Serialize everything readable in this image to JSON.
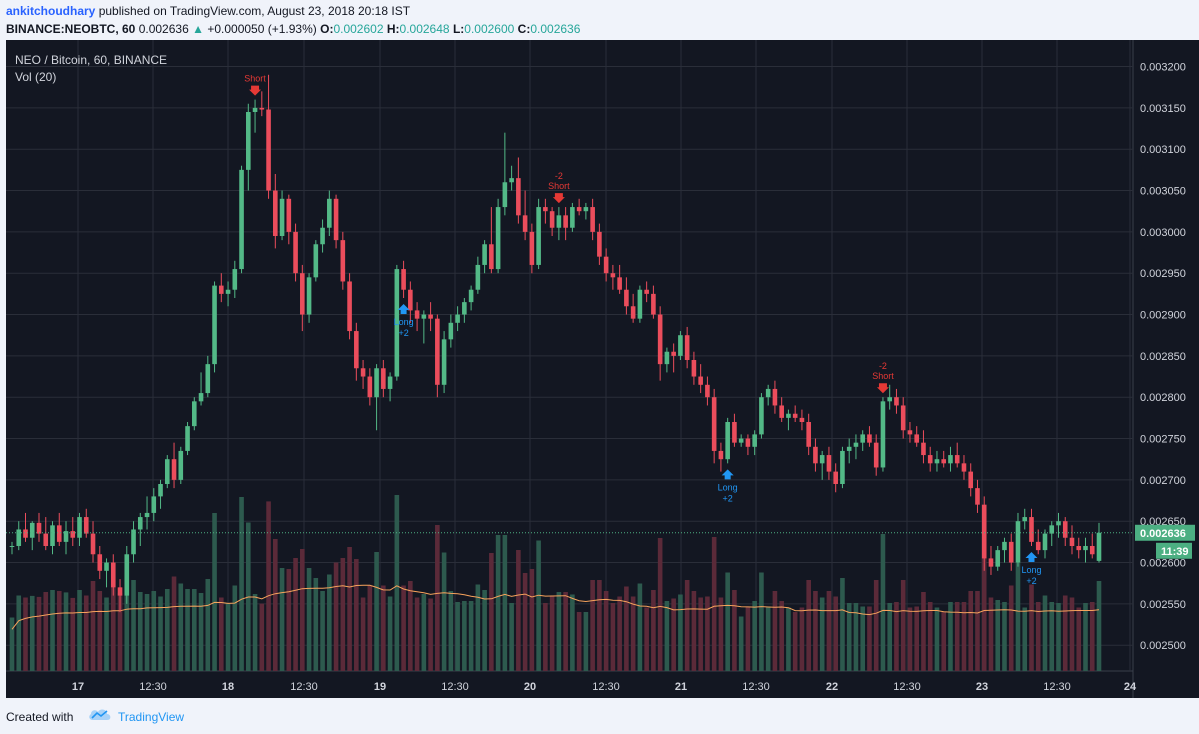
{
  "header": {
    "author": "ankitchoudhary",
    "published_text": "published on TradingView.com, August 23, 2018 20:18 IST",
    "symbol": "BINANCE:NEOBTC, 60",
    "last": "0.002636",
    "change": "+0.000050 (+1.93%)",
    "o_label": "O:",
    "o_value": "0.002602",
    "h_label": "H:",
    "h_value": "0.002648",
    "l_label": "L:",
    "l_value": "0.002600",
    "c_label": "C:",
    "c_value": "0.002636"
  },
  "chart_legend": {
    "series_title": "NEO / Bitcoin, 60, BINANCE",
    "volume_label": "Vol (20)"
  },
  "price_axis": {
    "ticks": [
      "0.003200",
      "0.003150",
      "0.003100",
      "0.003050",
      "0.003000",
      "0.002950",
      "0.002900",
      "0.002850",
      "0.002800",
      "0.002750",
      "0.002700",
      "0.002650",
      "0.002600",
      "0.002550",
      "0.002500"
    ],
    "current_price_label": "0.002636",
    "countdown_label": "11:39"
  },
  "time_axis": {
    "ticks": [
      "17",
      "12:30",
      "18",
      "12:30",
      "19",
      "12:30",
      "20",
      "12:30",
      "21",
      "12:30",
      "22",
      "12:30",
      "23",
      "12:30",
      "24"
    ]
  },
  "footer": {
    "created_with": "Created with",
    "brand": "TradingView"
  },
  "colors": {
    "background": "#131722",
    "up": "#53b987",
    "down": "#eb4d5c",
    "up_volume": "#2d5a4e",
    "down_volume": "#5b2a39",
    "ma_line": "#f7a35c",
    "grid": "#2a2e39",
    "signal_long": "#2196f3",
    "signal_short": "#e53935",
    "price_label": "#4caf82"
  },
  "chart_data": {
    "type": "candlestick",
    "symbol": "NEO / Bitcoin",
    "interval": "60",
    "exchange": "BINANCE",
    "ylim": [
      0.00247,
      0.00322
    ],
    "grid": true,
    "series": [
      {
        "name": "Vol (20)",
        "kind": "volume_with_ma",
        "ma_period": 20
      }
    ],
    "candles": [
      [
        0.00262,
        0.002625,
        0.00261,
        0.00262
      ],
      [
        0.00262,
        0.00265,
        0.002615,
        0.00264
      ],
      [
        0.00264,
        0.00266,
        0.002625,
        0.00263
      ],
      [
        0.00263,
        0.00265,
        0.002615,
        0.002648
      ],
      [
        0.002648,
        0.00266,
        0.002625,
        0.002635
      ],
      [
        0.002635,
        0.002655,
        0.002615,
        0.00262
      ],
      [
        0.00262,
        0.00265,
        0.00261,
        0.002645
      ],
      [
        0.002645,
        0.00266,
        0.00262,
        0.002625
      ],
      [
        0.002625,
        0.00265,
        0.00261,
        0.002638
      ],
      [
        0.002638,
        0.002655,
        0.00262,
        0.00263
      ],
      [
        0.00263,
        0.00266,
        0.00262,
        0.002655
      ],
      [
        0.002655,
        0.002665,
        0.00263,
        0.002635
      ],
      [
        0.002635,
        0.00265,
        0.0026,
        0.00261
      ],
      [
        0.00261,
        0.00262,
        0.00258,
        0.00259
      ],
      [
        0.00259,
        0.002605,
        0.00257,
        0.0026
      ],
      [
        0.0026,
        0.00261,
        0.00256,
        0.00257
      ],
      [
        0.00257,
        0.00258,
        0.00254,
        0.00256
      ],
      [
        0.00256,
        0.00262,
        0.00255,
        0.00261
      ],
      [
        0.00261,
        0.00265,
        0.0026,
        0.00264
      ],
      [
        0.00264,
        0.00266,
        0.00262,
        0.002655
      ],
      [
        0.002655,
        0.00268,
        0.00264,
        0.00266
      ],
      [
        0.00266,
        0.00269,
        0.00265,
        0.00268
      ],
      [
        0.00268,
        0.0027,
        0.002665,
        0.002695
      ],
      [
        0.002695,
        0.00273,
        0.00269,
        0.002725
      ],
      [
        0.002725,
        0.002745,
        0.00269,
        0.0027
      ],
      [
        0.0027,
        0.00274,
        0.002695,
        0.002735
      ],
      [
        0.002735,
        0.00277,
        0.00273,
        0.002765
      ],
      [
        0.002765,
        0.0028,
        0.00276,
        0.002795
      ],
      [
        0.002795,
        0.00283,
        0.00279,
        0.002805
      ],
      [
        0.002805,
        0.00285,
        0.0028,
        0.00284
      ],
      [
        0.00284,
        0.00294,
        0.00283,
        0.002935
      ],
      [
        0.002935,
        0.00295,
        0.002915,
        0.002925
      ],
      [
        0.002925,
        0.00294,
        0.00291,
        0.00293
      ],
      [
        0.00293,
        0.002965,
        0.00292,
        0.002955
      ],
      [
        0.002955,
        0.00308,
        0.00295,
        0.003075
      ],
      [
        0.003075,
        0.003155,
        0.00305,
        0.003145
      ],
      [
        0.003145,
        0.00316,
        0.00312,
        0.00315
      ],
      [
        0.00315,
        0.00317,
        0.00314,
        0.003148
      ],
      [
        0.003148,
        0.00319,
        0.00304,
        0.00305
      ],
      [
        0.00305,
        0.00307,
        0.00298,
        0.002995
      ],
      [
        0.002995,
        0.00305,
        0.00299,
        0.00304
      ],
      [
        0.00304,
        0.003045,
        0.002985,
        0.003
      ],
      [
        0.003,
        0.00301,
        0.00294,
        0.00295
      ],
      [
        0.00295,
        0.00296,
        0.00288,
        0.0029
      ],
      [
        0.0029,
        0.00295,
        0.00289,
        0.002945
      ],
      [
        0.002945,
        0.00299,
        0.00294,
        0.002985
      ],
      [
        0.002985,
        0.003015,
        0.002975,
        0.003005
      ],
      [
        0.003005,
        0.00305,
        0.002995,
        0.00304
      ],
      [
        0.00304,
        0.003045,
        0.00298,
        0.00299
      ],
      [
        0.00299,
        0.003,
        0.00293,
        0.00294
      ],
      [
        0.00294,
        0.00295,
        0.00287,
        0.00288
      ],
      [
        0.00288,
        0.00289,
        0.00282,
        0.002835
      ],
      [
        0.002835,
        0.002845,
        0.00281,
        0.002825
      ],
      [
        0.002825,
        0.002835,
        0.00279,
        0.0028
      ],
      [
        0.0028,
        0.00284,
        0.00276,
        0.002835
      ],
      [
        0.002835,
        0.002845,
        0.0028,
        0.00281
      ],
      [
        0.00281,
        0.00283,
        0.002795,
        0.002825
      ],
      [
        0.002825,
        0.00296,
        0.00282,
        0.002955
      ],
      [
        0.002955,
        0.002965,
        0.00292,
        0.00293
      ],
      [
        0.00293,
        0.00294,
        0.00289,
        0.002905
      ],
      [
        0.002905,
        0.002915,
        0.00288,
        0.002895
      ],
      [
        0.002895,
        0.002905,
        0.002865,
        0.0029
      ],
      [
        0.0029,
        0.002915,
        0.00288,
        0.002895
      ],
      [
        0.002895,
        0.0029,
        0.0028,
        0.002815
      ],
      [
        0.002815,
        0.00288,
        0.002805,
        0.00287
      ],
      [
        0.00287,
        0.0029,
        0.00286,
        0.00289
      ],
      [
        0.00289,
        0.00291,
        0.00288,
        0.0029
      ],
      [
        0.0029,
        0.00292,
        0.00289,
        0.002915
      ],
      [
        0.002915,
        0.002935,
        0.002905,
        0.00293
      ],
      [
        0.00293,
        0.00297,
        0.002925,
        0.00296
      ],
      [
        0.00296,
        0.00299,
        0.00295,
        0.002985
      ],
      [
        0.002985,
        0.00303,
        0.00295,
        0.002955
      ],
      [
        0.002955,
        0.00304,
        0.00295,
        0.00303
      ],
      [
        0.00303,
        0.00312,
        0.00302,
        0.00306
      ],
      [
        0.00306,
        0.00308,
        0.00305,
        0.003065
      ],
      [
        0.003065,
        0.00309,
        0.00301,
        0.00302
      ],
      [
        0.00302,
        0.00305,
        0.00299,
        0.003
      ],
      [
        0.003,
        0.00301,
        0.00295,
        0.00296
      ],
      [
        0.00296,
        0.00304,
        0.002955,
        0.00303
      ],
      [
        0.00303,
        0.00304,
        0.00301,
        0.003025
      ],
      [
        0.003025,
        0.00303,
        0.002995,
        0.003005
      ],
      [
        0.003005,
        0.00303,
        0.00299,
        0.00302
      ],
      [
        0.00302,
        0.00303,
        0.00299,
        0.003005
      ],
      [
        0.003005,
        0.003035,
        0.003,
        0.00303
      ],
      [
        0.00303,
        0.00304,
        0.00302,
        0.003025
      ],
      [
        0.003025,
        0.003035,
        0.003015,
        0.00303
      ],
      [
        0.00303,
        0.00304,
        0.00299,
        0.003
      ],
      [
        0.003,
        0.00301,
        0.00296,
        0.00297
      ],
      [
        0.00297,
        0.00298,
        0.00294,
        0.00295
      ],
      [
        0.00295,
        0.00296,
        0.00293,
        0.002945
      ],
      [
        0.002945,
        0.00296,
        0.002925,
        0.00293
      ],
      [
        0.00293,
        0.002945,
        0.0029,
        0.00291
      ],
      [
        0.00291,
        0.002925,
        0.00289,
        0.002895
      ],
      [
        0.002895,
        0.002935,
        0.00289,
        0.00293
      ],
      [
        0.00293,
        0.00294,
        0.002915,
        0.002925
      ],
      [
        0.002925,
        0.002935,
        0.002895,
        0.0029
      ],
      [
        0.0029,
        0.00291,
        0.00282,
        0.00284
      ],
      [
        0.00284,
        0.00286,
        0.00283,
        0.002855
      ],
      [
        0.002855,
        0.002865,
        0.00283,
        0.00285
      ],
      [
        0.00285,
        0.00288,
        0.002845,
        0.002875
      ],
      [
        0.002875,
        0.002885,
        0.002835,
        0.002845
      ],
      [
        0.002845,
        0.002855,
        0.002815,
        0.002825
      ],
      [
        0.002825,
        0.00284,
        0.002805,
        0.002815
      ],
      [
        0.002815,
        0.002825,
        0.00279,
        0.0028
      ],
      [
        0.0028,
        0.00281,
        0.00272,
        0.002735
      ],
      [
        0.002735,
        0.002745,
        0.00271,
        0.002725
      ],
      [
        0.002725,
        0.002775,
        0.00272,
        0.00277
      ],
      [
        0.00277,
        0.00278,
        0.00274,
        0.002745
      ],
      [
        0.002745,
        0.002755,
        0.00274,
        0.00275
      ],
      [
        0.00275,
        0.002755,
        0.00273,
        0.00274
      ],
      [
        0.00274,
        0.00276,
        0.00273,
        0.002755
      ],
      [
        0.002755,
        0.002805,
        0.00275,
        0.0028
      ],
      [
        0.0028,
        0.002815,
        0.00279,
        0.00281
      ],
      [
        0.00281,
        0.00282,
        0.00278,
        0.00279
      ],
      [
        0.00279,
        0.0028,
        0.00277,
        0.002775
      ],
      [
        0.002775,
        0.002785,
        0.00276,
        0.00278
      ],
      [
        0.00278,
        0.00279,
        0.00277,
        0.002775
      ],
      [
        0.002775,
        0.002785,
        0.00276,
        0.00277
      ],
      [
        0.00277,
        0.00278,
        0.00273,
        0.00274
      ],
      [
        0.00274,
        0.00275,
        0.00271,
        0.00272
      ],
      [
        0.00272,
        0.002735,
        0.0027,
        0.00273
      ],
      [
        0.00273,
        0.00274,
        0.0027,
        0.00271
      ],
      [
        0.00271,
        0.00272,
        0.002685,
        0.002695
      ],
      [
        0.002695,
        0.00274,
        0.00269,
        0.002735
      ],
      [
        0.002735,
        0.00275,
        0.00272,
        0.00274
      ],
      [
        0.00274,
        0.002755,
        0.002725,
        0.002745
      ],
      [
        0.002745,
        0.00276,
        0.002735,
        0.002755
      ],
      [
        0.002755,
        0.002765,
        0.00274,
        0.002745
      ],
      [
        0.002745,
        0.002755,
        0.002705,
        0.002715
      ],
      [
        0.002715,
        0.0028,
        0.00271,
        0.002795
      ],
      [
        0.002795,
        0.002815,
        0.002785,
        0.0028
      ],
      [
        0.0028,
        0.00281,
        0.00278,
        0.00279
      ],
      [
        0.00279,
        0.0028,
        0.00275,
        0.00276
      ],
      [
        0.00276,
        0.00277,
        0.002745,
        0.002755
      ],
      [
        0.002755,
        0.002765,
        0.00274,
        0.002745
      ],
      [
        0.002745,
        0.00276,
        0.00272,
        0.00273
      ],
      [
        0.00273,
        0.00274,
        0.00271,
        0.00272
      ],
      [
        0.00272,
        0.002735,
        0.00271,
        0.002725
      ],
      [
        0.002725,
        0.002735,
        0.002715,
        0.00272
      ],
      [
        0.00272,
        0.00274,
        0.00271,
        0.00273
      ],
      [
        0.00273,
        0.002745,
        0.002715,
        0.00272
      ],
      [
        0.00272,
        0.00273,
        0.0027,
        0.00271
      ],
      [
        0.00271,
        0.00272,
        0.00268,
        0.00269
      ],
      [
        0.00269,
        0.0027,
        0.00266,
        0.00267
      ],
      [
        0.00267,
        0.00268,
        0.00259,
        0.002605
      ],
      [
        0.002605,
        0.00262,
        0.002585,
        0.002595
      ],
      [
        0.002595,
        0.00262,
        0.00259,
        0.002615
      ],
      [
        0.002615,
        0.00263,
        0.0026,
        0.002625
      ],
      [
        0.002625,
        0.002635,
        0.00259,
        0.0026
      ],
      [
        0.0026,
        0.00266,
        0.002595,
        0.00265
      ],
      [
        0.00265,
        0.002665,
        0.00264,
        0.002655
      ],
      [
        0.002655,
        0.002665,
        0.00262,
        0.002625
      ],
      [
        0.002625,
        0.00264,
        0.00261,
        0.002615
      ],
      [
        0.002615,
        0.00264,
        0.002605,
        0.002635
      ],
      [
        0.002635,
        0.00265,
        0.00262,
        0.002645
      ],
      [
        0.002645,
        0.00266,
        0.00263,
        0.00265
      ],
      [
        0.00265,
        0.002655,
        0.00262,
        0.00263
      ],
      [
        0.00263,
        0.002645,
        0.00261,
        0.00262
      ],
      [
        0.00262,
        0.00263,
        0.002605,
        0.002615
      ],
      [
        0.002615,
        0.00263,
        0.0026,
        0.00262
      ],
      [
        0.00262,
        0.002635,
        0.002605,
        0.00261
      ],
      [
        0.002602,
        0.002648,
        0.0026,
        0.002636
      ]
    ],
    "signals": [
      {
        "type": "short",
        "label": "Short",
        "qty": "",
        "candle": 36
      },
      {
        "type": "long",
        "label": "Long",
        "qty": "+2",
        "candle": 58
      },
      {
        "type": "short",
        "label": "Short",
        "qty": "-2",
        "candle": 81
      },
      {
        "type": "long",
        "label": "Long",
        "qty": "+2",
        "candle": 106
      },
      {
        "type": "short",
        "label": "Short",
        "qty": "-2",
        "candle": 129
      },
      {
        "type": "long",
        "label": "Long",
        "qty": "+2",
        "candle": 151
      }
    ]
  }
}
